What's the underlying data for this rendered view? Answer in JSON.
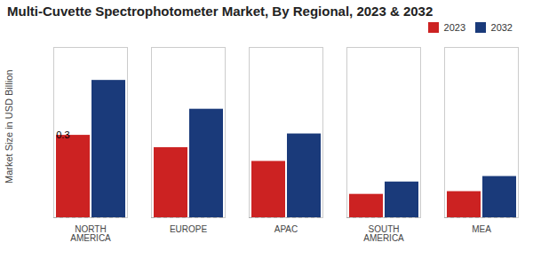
{
  "chart_data": {
    "type": "bar",
    "title": "Multi-Cuvette Spectrophotometer Market, By Regional, 2023 & 2032",
    "ylabel": "Market Size in USD Billion",
    "categories": [
      "NORTH\nAMERICA",
      "EUROPE",
      "APAC",
      "SOUTH\nAMERICA",
      "MEA"
    ],
    "series": [
      {
        "name": "2023",
        "color": "#cc2222",
        "values": [
          0.3,
          0.255,
          0.205,
          0.085,
          0.095
        ]
      },
      {
        "name": "2032",
        "color": "#1a3a7a",
        "values": [
          0.5,
          0.395,
          0.305,
          0.13,
          0.15
        ]
      }
    ],
    "ylim": [
      0,
      0.62
    ],
    "yticks": [],
    "tick_labels": "x",
    "grid": false,
    "legend": "upper right",
    "annotations": [
      {
        "text": "0.3",
        "x": "NORTH\nAMERICA",
        "y": 0.3
      }
    ]
  }
}
